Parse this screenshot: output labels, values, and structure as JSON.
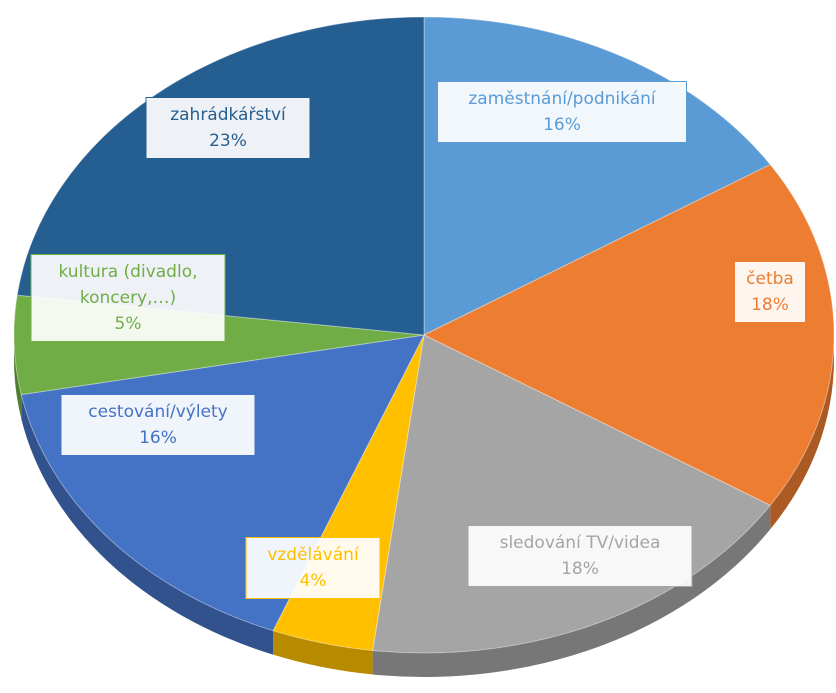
{
  "chart_data": {
    "type": "pie",
    "categories": [
      "zaměstnání/podnikání",
      "četba",
      "sledování TV/videa",
      "vzdělávání",
      "cestování/výlety",
      "kultura (divadlo, koncery,…)",
      "zahrádkářství"
    ],
    "values": [
      16,
      18,
      18,
      4,
      16,
      5,
      23
    ],
    "value_labels": [
      "16%",
      "18%",
      "18%",
      "4%",
      "16%",
      "5%",
      "23%"
    ],
    "colors": [
      "#5b9bd5",
      "#ed7d31",
      "#a5a5a5",
      "#ffc000",
      "#4472c4",
      "#70ad47",
      "#255e91"
    ]
  }
}
